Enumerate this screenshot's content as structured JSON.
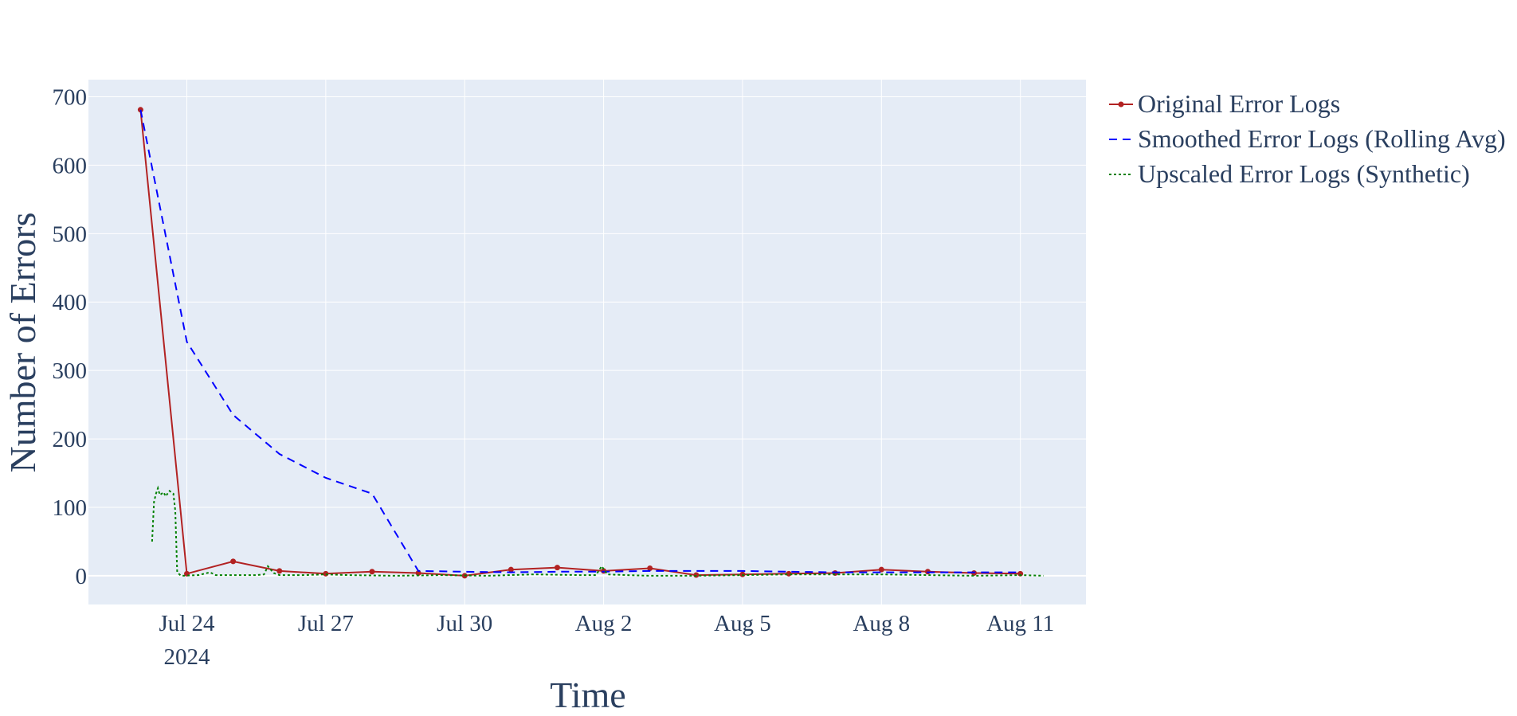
{
  "chart_data": {
    "type": "line",
    "title": "",
    "xlabel": "Time",
    "ylabel": "Number of Errors",
    "x_ticks": [
      {
        "date": "2024-07-24",
        "label": "Jul 24",
        "sublabel": "2024"
      },
      {
        "date": "2024-07-27",
        "label": "Jul 27",
        "sublabel": ""
      },
      {
        "date": "2024-07-30",
        "label": "Jul 30",
        "sublabel": ""
      },
      {
        "date": "2024-08-02",
        "label": "Aug 2",
        "sublabel": ""
      },
      {
        "date": "2024-08-05",
        "label": "Aug 5",
        "sublabel": ""
      },
      {
        "date": "2024-08-08",
        "label": "Aug 8",
        "sublabel": ""
      },
      {
        "date": "2024-08-11",
        "label": "Aug 11",
        "sublabel": ""
      }
    ],
    "y_ticks": [
      0,
      100,
      200,
      300,
      400,
      500,
      600,
      700
    ],
    "xlim": [
      "2024-07-21T21:00",
      "2024-08-12T10:00"
    ],
    "ylim": [
      -42,
      725
    ],
    "grid": true,
    "legend_position": "top-right outside",
    "background_color": "#e5ecf6",
    "series": [
      {
        "name": "Original Error Logs",
        "color": "#b22222",
        "style": "solid",
        "markers": true,
        "points": [
          [
            "2024-07-23",
            681
          ],
          [
            "2024-07-24",
            3
          ],
          [
            "2024-07-25",
            21
          ],
          [
            "2024-07-26",
            7
          ],
          [
            "2024-07-27",
            3
          ],
          [
            "2024-07-28",
            6
          ],
          [
            "2024-07-29",
            4
          ],
          [
            "2024-07-30",
            0
          ],
          [
            "2024-07-31",
            9
          ],
          [
            "2024-08-01",
            12
          ],
          [
            "2024-08-02",
            7
          ],
          [
            "2024-08-03",
            11
          ],
          [
            "2024-08-04",
            1
          ],
          [
            "2024-08-05",
            2
          ],
          [
            "2024-08-06",
            3
          ],
          [
            "2024-08-07",
            4
          ],
          [
            "2024-08-08",
            9
          ],
          [
            "2024-08-09",
            6
          ],
          [
            "2024-08-10",
            4
          ],
          [
            "2024-08-11",
            3
          ]
        ]
      },
      {
        "name": "Smoothed Error Logs (Rolling Avg)",
        "color": "#0000ff",
        "style": "dashed",
        "markers": false,
        "points": [
          [
            "2024-07-23",
            681
          ],
          [
            "2024-07-24",
            342
          ],
          [
            "2024-07-25",
            235
          ],
          [
            "2024-07-26",
            178
          ],
          [
            "2024-07-27",
            143
          ],
          [
            "2024-07-28",
            120
          ],
          [
            "2024-07-29",
            7
          ],
          [
            "2024-07-30",
            6
          ],
          [
            "2024-07-31",
            5
          ],
          [
            "2024-08-01",
            6
          ],
          [
            "2024-08-02",
            6
          ],
          [
            "2024-08-03",
            7
          ],
          [
            "2024-08-04",
            7
          ],
          [
            "2024-08-05",
            7
          ],
          [
            "2024-08-06",
            6
          ],
          [
            "2024-08-07",
            5
          ],
          [
            "2024-08-08",
            5
          ],
          [
            "2024-08-09",
            5
          ],
          [
            "2024-08-10",
            5
          ],
          [
            "2024-08-11",
            5
          ]
        ]
      },
      {
        "name": "Upscaled Error Logs (Synthetic)",
        "color": "#008000",
        "style": "dotted",
        "markers": false,
        "points": [
          [
            "2024-07-23T06:00",
            50
          ],
          [
            "2024-07-23T07:00",
            108
          ],
          [
            "2024-07-23T08:00",
            120
          ],
          [
            "2024-07-23T09:00",
            128
          ],
          [
            "2024-07-23T10:00",
            118
          ],
          [
            "2024-07-23T12:00",
            122
          ],
          [
            "2024-07-23T13:00",
            116
          ],
          [
            "2024-07-23T15:00",
            124
          ],
          [
            "2024-07-23T17:00",
            120
          ],
          [
            "2024-07-23T18:00",
            95
          ],
          [
            "2024-07-23T19:00",
            5
          ],
          [
            "2024-07-23T21:00",
            0
          ],
          [
            "2024-07-24T06:00",
            1
          ],
          [
            "2024-07-24T12:00",
            5
          ],
          [
            "2024-07-24T15:00",
            1
          ],
          [
            "2024-07-25T12:00",
            1
          ],
          [
            "2024-07-25T16:00",
            2
          ],
          [
            "2024-07-25T18:00",
            14
          ],
          [
            "2024-07-25T21:00",
            4
          ],
          [
            "2024-07-26T00:00",
            1
          ],
          [
            "2024-07-26T12:00",
            1
          ],
          [
            "2024-07-27T00:00",
            2
          ],
          [
            "2024-07-27T12:00",
            1
          ],
          [
            "2024-07-28T12:00",
            0
          ],
          [
            "2024-07-29T12:00",
            1
          ],
          [
            "2024-07-30T12:00",
            0
          ],
          [
            "2024-07-31T12:00",
            2
          ],
          [
            "2024-08-01T12:00",
            1
          ],
          [
            "2024-08-01T20:00",
            1
          ],
          [
            "2024-08-01T23:00",
            14
          ],
          [
            "2024-08-02T02:00",
            2
          ],
          [
            "2024-08-02T12:00",
            1
          ],
          [
            "2024-08-03T00:00",
            0
          ],
          [
            "2024-08-04T00:00",
            0
          ],
          [
            "2024-08-05T00:00",
            1
          ],
          [
            "2024-08-06T00:00",
            2
          ],
          [
            "2024-08-07T00:00",
            2
          ],
          [
            "2024-08-08T00:00",
            2
          ],
          [
            "2024-08-09T00:00",
            1
          ],
          [
            "2024-08-10T00:00",
            0
          ],
          [
            "2024-08-11T00:00",
            1
          ],
          [
            "2024-08-11T12:00",
            0
          ]
        ]
      }
    ]
  }
}
